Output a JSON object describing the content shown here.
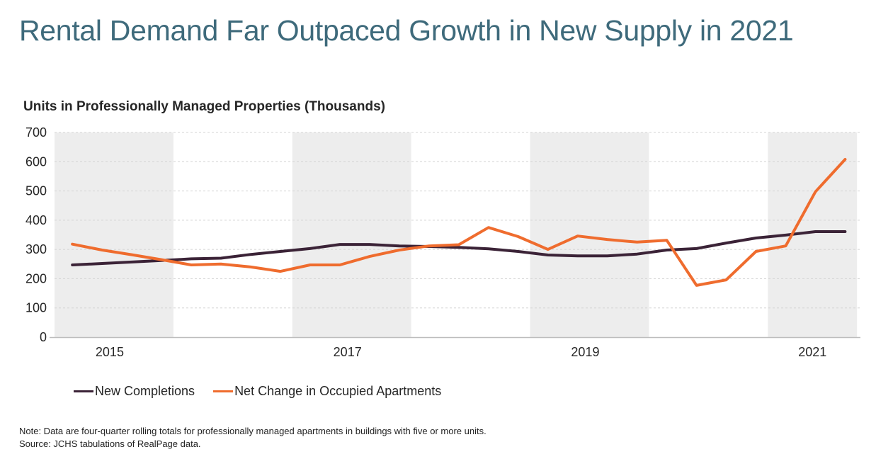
{
  "header": {
    "title": "Rental Demand Far Outpaced Growth in New Supply in 2021",
    "subtitle": "Units in Professionally Managed Properties (Thousands)"
  },
  "colors": {
    "title": "#3e6a7b",
    "new_completions": "#3b2337",
    "net_change": "#ef6c2e",
    "shade": "#ededed",
    "grid": "#d4d4d4",
    "axis": "#bdbdbd"
  },
  "chart_data": {
    "type": "line",
    "title": "Units in Professionally Managed Properties (Thousands)",
    "xlabel": "",
    "ylabel": "",
    "ylim": [
      0,
      700
    ],
    "yticks": [
      0,
      100,
      200,
      300,
      400,
      500,
      600,
      700
    ],
    "grid": true,
    "legend_position": "bottom-left",
    "x_tick_labels": [
      "2015",
      "2017",
      "2019",
      "2021"
    ],
    "shaded_years": [
      "2015",
      "2017",
      "2019",
      "2021"
    ],
    "x": [
      "2015Q1",
      "2015Q2",
      "2015Q3",
      "2015Q4",
      "2016Q1",
      "2016Q2",
      "2016Q3",
      "2016Q4",
      "2017Q1",
      "2017Q2",
      "2017Q3",
      "2017Q4",
      "2018Q1",
      "2018Q2",
      "2018Q3",
      "2018Q4",
      "2019Q1",
      "2019Q2",
      "2019Q3",
      "2019Q4",
      "2020Q1",
      "2020Q2",
      "2020Q3",
      "2020Q4",
      "2021Q1",
      "2021Q2",
      "2021Q3"
    ],
    "series": [
      {
        "name": "New Completions",
        "color": "#3b2337",
        "values": [
          247,
          252,
          257,
          262,
          268,
          270,
          283,
          293,
          303,
          317,
          317,
          312,
          310,
          307,
          302,
          293,
          281,
          278,
          278,
          284,
          298,
          303,
          322,
          339,
          349,
          361,
          361
        ]
      },
      {
        "name": "Net Change in Occupied Apartments",
        "color": "#ef6c2e",
        "values": [
          318,
          298,
          282,
          265,
          247,
          250,
          240,
          225,
          247,
          247,
          276,
          298,
          312,
          316,
          375,
          344,
          300,
          346,
          334,
          325,
          331,
          177,
          196,
          293,
          312,
          497,
          608
        ]
      }
    ]
  },
  "legend": [
    {
      "label": "New Completions",
      "color": "#3b2337"
    },
    {
      "label": "Net Change in Occupied Apartments",
      "color": "#ef6c2e"
    }
  ],
  "footer": {
    "note": "Note: Data are four-quarter rolling totals for professionally managed apartments in buildings with five or more units.",
    "source": "Source: JCHS tabulations of RealPage data."
  }
}
